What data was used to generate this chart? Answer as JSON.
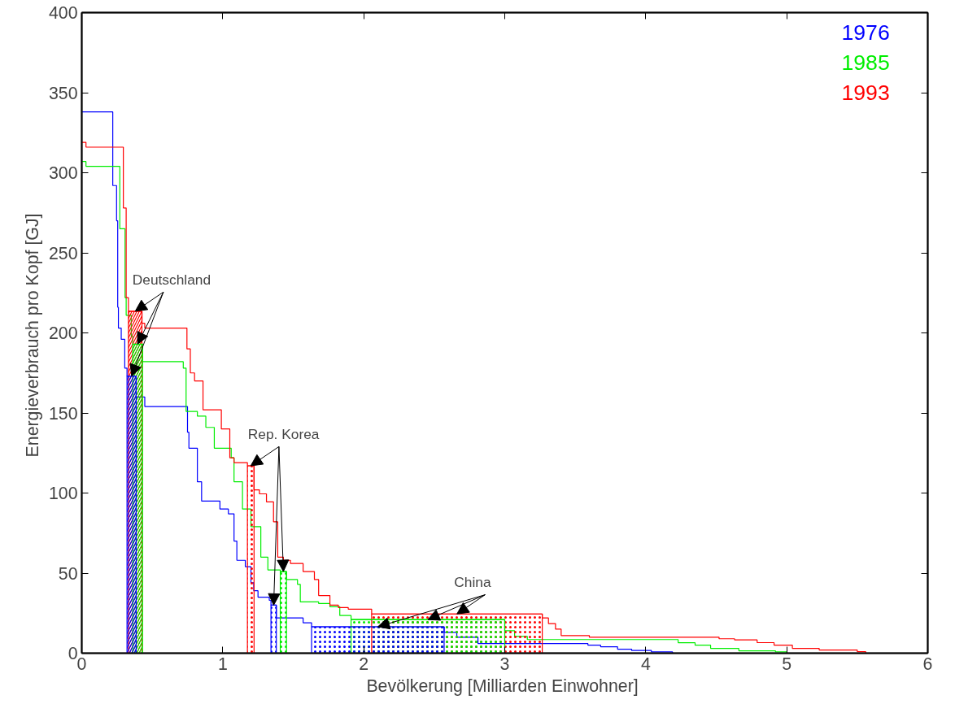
{
  "chart_data": {
    "type": "step",
    "xlabel": "Bevölkerung  [Milliarden Einwohner]",
    "ylabel": "Energieverbrauch pro Kopf  [GJ]",
    "xlim": [
      0,
      6
    ],
    "ylim": [
      0,
      400
    ],
    "xticks": [
      0,
      1,
      2,
      3,
      4,
      5,
      6
    ],
    "yticks": [
      0,
      50,
      100,
      150,
      200,
      250,
      300,
      350,
      400
    ],
    "legend": "top right",
    "series": [
      {
        "name": "1976",
        "color": "#0000ff",
        "x": [
          0,
          0.22,
          0.247,
          0.255,
          0.26,
          0.28,
          0.305,
          0.321,
          0.386,
          0.447,
          0.75,
          0.76,
          0.82,
          0.85,
          0.98,
          1.04,
          1.08,
          1.1,
          1.16,
          1.2,
          1.22,
          1.25,
          1.33,
          1.342,
          1.38,
          1.57,
          1.63,
          2.57,
          2.66,
          2.81,
          3.59,
          3.68,
          3.8,
          3.9,
          4.04,
          4.19
        ],
        "values": [
          338,
          292,
          270,
          216,
          203,
          196,
          178,
          173,
          160,
          154,
          138,
          128,
          107,
          95,
          90,
          87,
          70,
          58,
          54,
          44,
          39,
          35,
          33,
          30,
          22,
          19,
          16.5,
          13,
          10,
          6,
          5,
          4,
          2.5,
          1.7,
          0.8,
          0
        ]
      },
      {
        "name": "1985",
        "color": "#00ee00",
        "x": [
          0,
          0.03,
          0.27,
          0.307,
          0.315,
          0.351,
          0.361,
          0.431,
          0.72,
          0.74,
          0.82,
          0.88,
          0.94,
          1.06,
          1.08,
          1.14,
          1.2,
          1.27,
          1.32,
          1.408,
          1.452,
          1.53,
          1.55,
          1.68,
          1.76,
          1.83,
          1.91,
          3.0,
          3.07,
          3.16,
          4.23,
          4.35,
          4.46,
          4.66,
          4.92,
          5.0
        ],
        "values": [
          307,
          304,
          265,
          222,
          211,
          198,
          193,
          182,
          178,
          151,
          148,
          141,
          128,
          122,
          107,
          90,
          79,
          60,
          52,
          51,
          46,
          43,
          32,
          31,
          29,
          23.5,
          21,
          14,
          10.5,
          8.5,
          6.5,
          5,
          3,
          1.5,
          0.8,
          0
        ]
      },
      {
        "name": "1993",
        "color": "#ff0000",
        "x": [
          0,
          0.03,
          0.295,
          0.315,
          0.331,
          0.427,
          0.447,
          0.746,
          0.77,
          0.8,
          0.86,
          0.99,
          1.05,
          1.08,
          1.175,
          1.222,
          1.26,
          1.31,
          1.36,
          1.39,
          1.43,
          1.48,
          1.57,
          1.65,
          1.68,
          1.76,
          1.82,
          1.89,
          2.056,
          3.266,
          3.31,
          3.36,
          3.4,
          3.6,
          4.52,
          4.63,
          4.79,
          4.91,
          5.04,
          5.23,
          5.5,
          5.56
        ],
        "values": [
          319,
          316,
          278,
          222,
          213.5,
          206,
          203,
          190,
          175,
          170,
          152,
          140,
          122,
          119,
          117,
          102,
          99.5,
          94.5,
          82,
          60,
          58,
          56,
          51,
          46,
          36,
          30,
          28.5,
          27.5,
          24.5,
          22,
          18.5,
          15,
          11,
          10,
          9,
          8.3,
          6.6,
          5,
          3,
          2,
          1,
          0
        ]
      },
      {
        "type": "area",
        "color": "#ff0000",
        "x": [
          0.331,
          0.427
        ],
        "values": [
          213.5,
          213.5
        ]
      },
      {
        "type": "area",
        "color": "#00ee00",
        "x": [
          0.361,
          0.431
        ],
        "values": [
          193,
          193
        ]
      },
      {
        "type": "area",
        "color": "#0000ff",
        "x": [
          0.321,
          0.386
        ],
        "values": [
          173,
          173
        ]
      },
      {
        "type": "area",
        "color": "#ff0000",
        "x": [
          1.175,
          1.222
        ],
        "values": [
          117,
          117
        ]
      },
      {
        "type": "area",
        "color": "#00ee00",
        "x": [
          1.408,
          1.452
        ],
        "values": [
          51,
          51
        ]
      },
      {
        "type": "area",
        "color": "#0000ff",
        "x": [
          1.342,
          1.38
        ],
        "values": [
          30,
          30
        ]
      },
      {
        "type": "area",
        "color": "#ff0000",
        "x": [
          2.056,
          3.266
        ],
        "values": [
          24.5,
          24.5
        ]
      },
      {
        "type": "area",
        "color": "#00ee00",
        "x": [
          1.91,
          3.0
        ],
        "values": [
          21,
          21
        ]
      },
      {
        "type": "area",
        "color": "#0000ff",
        "x": [
          1.63,
          2.57
        ],
        "values": [
          16.5,
          16.5
        ]
      }
    ],
    "annotations": [
      {
        "text": "Deutschland",
        "x": 0.379,
        "y": 213.5
      },
      {
        "text": "Rep. Korea",
        "x": 1.1985,
        "y": 117
      },
      {
        "text": "China",
        "x": 2.661,
        "y": 24.5
      }
    ]
  }
}
